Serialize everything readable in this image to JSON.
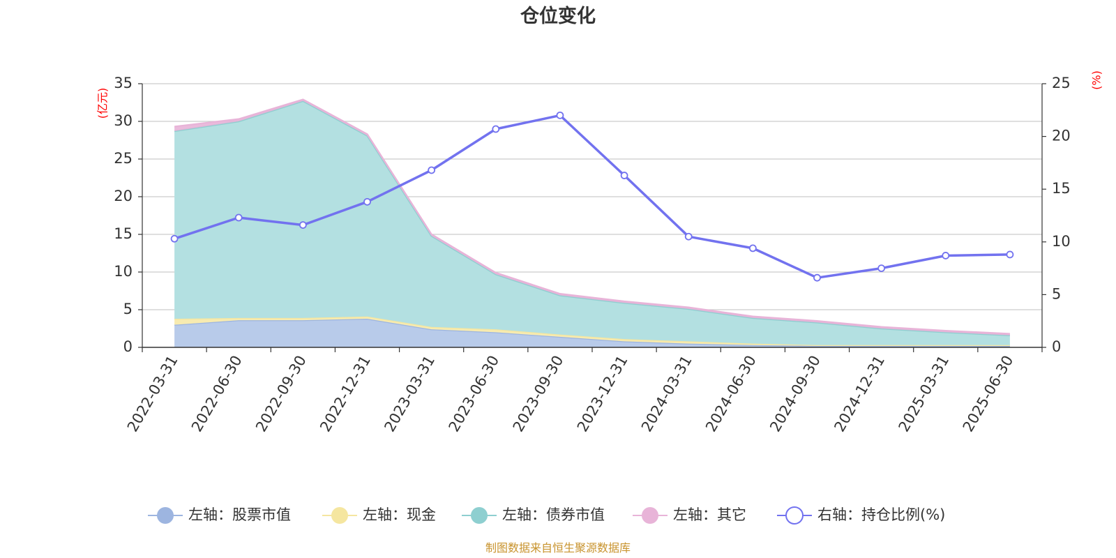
{
  "colors": {
    "stock": "#9db5e0",
    "stock_fill": "#b8cbea",
    "cash": "#f5e6a0",
    "cash_fill": "#f7ebb0",
    "bond": "#8ecfd0",
    "bond_fill": "#b3e0e1",
    "other": "#e8b4d8",
    "ratio": "#7272ef",
    "axis_unit": "#ff0000",
    "source": "#c8932d"
  },
  "chart_data": {
    "type": "area",
    "title": "仓位变化",
    "left_unit": "(亿元)",
    "right_unit": "(%)",
    "categories": [
      "2022-03-31",
      "2022-06-30",
      "2022-09-30",
      "2022-12-31",
      "2023-03-31",
      "2023-06-30",
      "2023-09-30",
      "2023-12-31",
      "2024-03-31",
      "2024-06-30",
      "2024-09-30",
      "2024-12-31",
      "2025-03-31",
      "2025-06-30"
    ],
    "left_axis": {
      "min": 0,
      "max": 35,
      "ticks": [
        0,
        5,
        10,
        15,
        20,
        25,
        30,
        35
      ]
    },
    "right_axis": {
      "min": 0,
      "max": 25,
      "ticks": [
        0,
        5,
        10,
        15,
        20,
        25
      ]
    },
    "grid": true,
    "legend_position": "bottom",
    "series": [
      {
        "name": "左轴：股票市值",
        "axis": "left",
        "stacked": true,
        "color_key": "stock",
        "values": [
          3.0,
          3.6,
          3.6,
          3.8,
          2.4,
          2.0,
          1.4,
          0.8,
          0.5,
          0.3,
          0.2,
          0.2,
          0.2,
          0.2
        ]
      },
      {
        "name": "左轴：现金",
        "axis": "left",
        "stacked": true,
        "color_key": "cash",
        "values": [
          0.8,
          0.3,
          0.3,
          0.3,
          0.3,
          0.4,
          0.3,
          0.3,
          0.3,
          0.2,
          0.1,
          0.1,
          0.1,
          0.1
        ]
      },
      {
        "name": "左轴：债券市值",
        "axis": "left",
        "stacked": true,
        "color_key": "bond",
        "values": [
          24.9,
          26.1,
          28.8,
          24.0,
          12.1,
          7.3,
          5.2,
          4.8,
          4.3,
          3.4,
          3.0,
          2.2,
          1.7,
          1.3
        ]
      },
      {
        "name": "左轴：其它",
        "axis": "left",
        "stacked": true,
        "color_key": "other",
        "values": [
          0.6,
          0.3,
          0.2,
          0.2,
          0.2,
          0.2,
          0.2,
          0.2,
          0.2,
          0.2,
          0.2,
          0.2,
          0.2,
          0.2
        ]
      },
      {
        "name": "右轴：持仓比例(%)",
        "axis": "right",
        "type": "line",
        "color_key": "ratio",
        "values": [
          10.3,
          12.3,
          11.6,
          13.8,
          16.8,
          20.7,
          22.0,
          16.3,
          10.5,
          9.4,
          6.6,
          7.5,
          8.7,
          8.8
        ]
      }
    ],
    "source_note": "制图数据来自恒生聚源数据库"
  }
}
